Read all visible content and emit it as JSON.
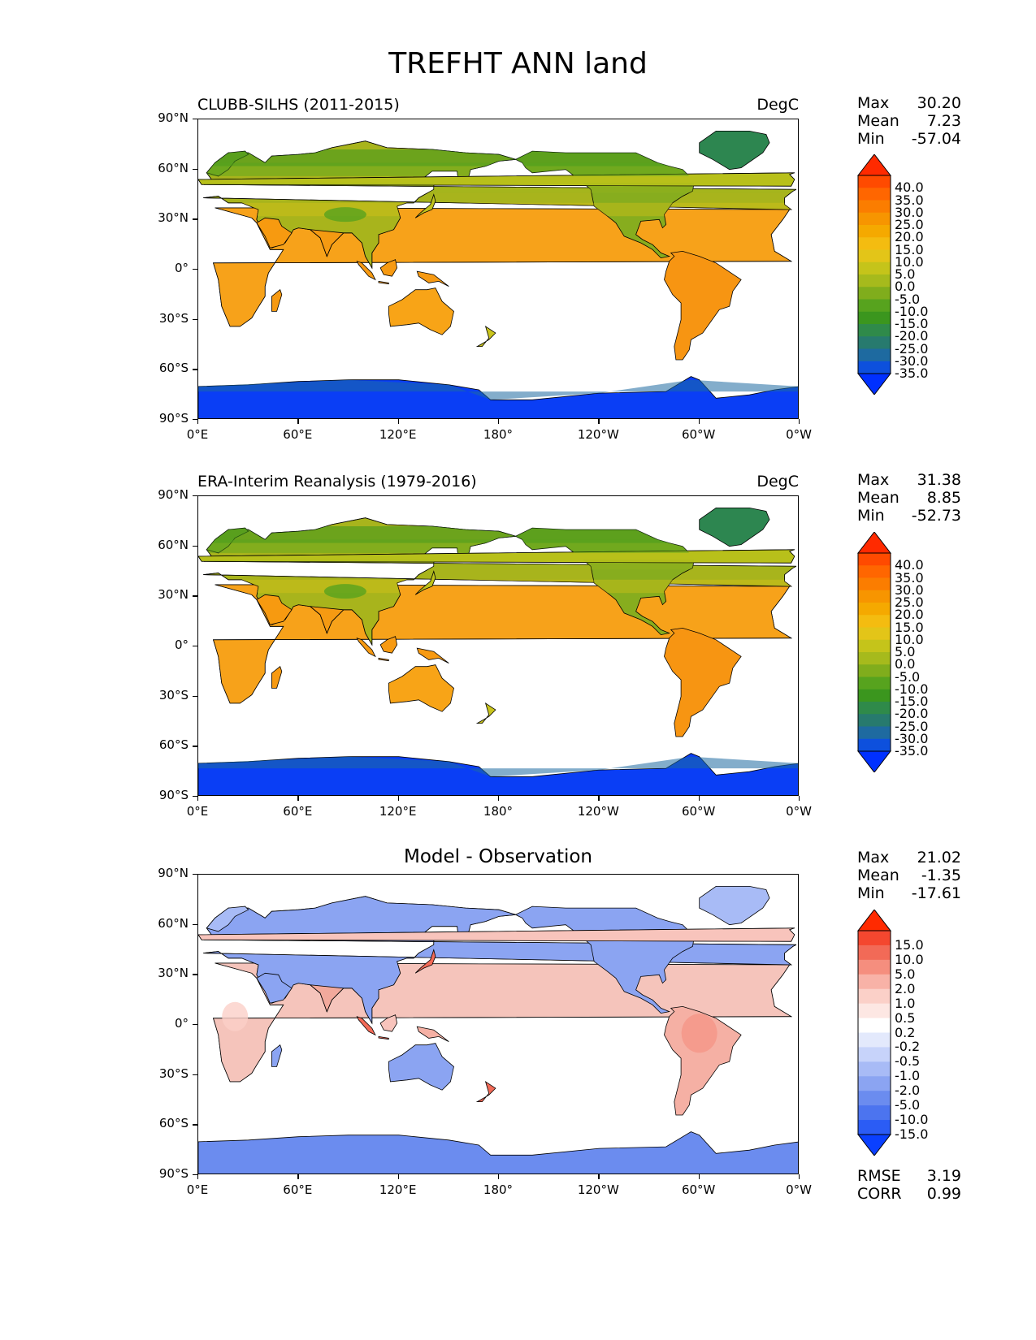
{
  "figure_title": "TREFHT ANN land",
  "panels": [
    {
      "title": "CLUBB-SILHS (2011-2015)",
      "units": "DegC",
      "stats": [
        [
          "Max",
          "30.20"
        ],
        [
          "Mean",
          "7.23"
        ],
        [
          "Min",
          "-57.04"
        ]
      ],
      "colorbar": "abs"
    },
    {
      "title": "ERA-Interim Reanalysis (1979-2016)",
      "units": "DegC",
      "stats": [
        [
          "Max",
          "31.38"
        ],
        [
          "Mean",
          "8.85"
        ],
        [
          "Min",
          "-52.73"
        ]
      ],
      "colorbar": "abs"
    },
    {
      "title": "Model - Observation",
      "units": "",
      "stats": [
        [
          "Max",
          "21.02"
        ],
        [
          "Mean",
          "-1.35"
        ],
        [
          "Min",
          "-17.61"
        ]
      ],
      "colorbar": "diff",
      "metrics": [
        [
          "RMSE",
          "3.19"
        ],
        [
          "CORR",
          "0.99"
        ]
      ]
    }
  ],
  "axes": {
    "lat_labels": [
      "90°N",
      "60°N",
      "30°N",
      "0°",
      "30°S",
      "60°S",
      "90°S"
    ],
    "lon_labels": [
      "0°E",
      "60°E",
      "120°E",
      "180°",
      "120°W",
      "60°W",
      "0°W"
    ]
  },
  "colorbars": {
    "abs": {
      "labels": [
        "40.0",
        "35.0",
        "30.0",
        "25.0",
        "20.0",
        "15.0",
        "10.0",
        "5.0",
        "0.0",
        "-5.0",
        "-10.0",
        "-15.0",
        "-20.0",
        "-25.0",
        "-30.0",
        "-35.0"
      ],
      "colors": [
        "#ff2a00",
        "#ff4a00",
        "#ff6600",
        "#fb7d00",
        "#f79500",
        "#f5a900",
        "#f4bc10",
        "#e3c518",
        "#c5c41a",
        "#a6ba1c",
        "#80ad1c",
        "#57a31e",
        "#3b961e",
        "#2f8a4a",
        "#277a6e",
        "#1e6aa0",
        "#0d50dd",
        "#0030ff"
      ]
    },
    "diff": {
      "labels": [
        "15.0",
        "10.0",
        "5.0",
        "2.0",
        "1.0",
        "0.5",
        "0.2",
        "-0.2",
        "-0.5",
        "-1.0",
        "-2.0",
        "-5.0",
        "-10.0",
        "-15.0"
      ],
      "colors": [
        "#ff2a00",
        "#f4472f",
        "#f26a57",
        "#f58e7e",
        "#f8b2a7",
        "#fbd0c8",
        "#fde7e3",
        "#ffffff",
        "#e3e9fc",
        "#c7d3fa",
        "#a8bbf6",
        "#8ba4f2",
        "#6b8cef",
        "#4c74ef",
        "#2b5cf5",
        "#0a40ff"
      ]
    }
  }
}
